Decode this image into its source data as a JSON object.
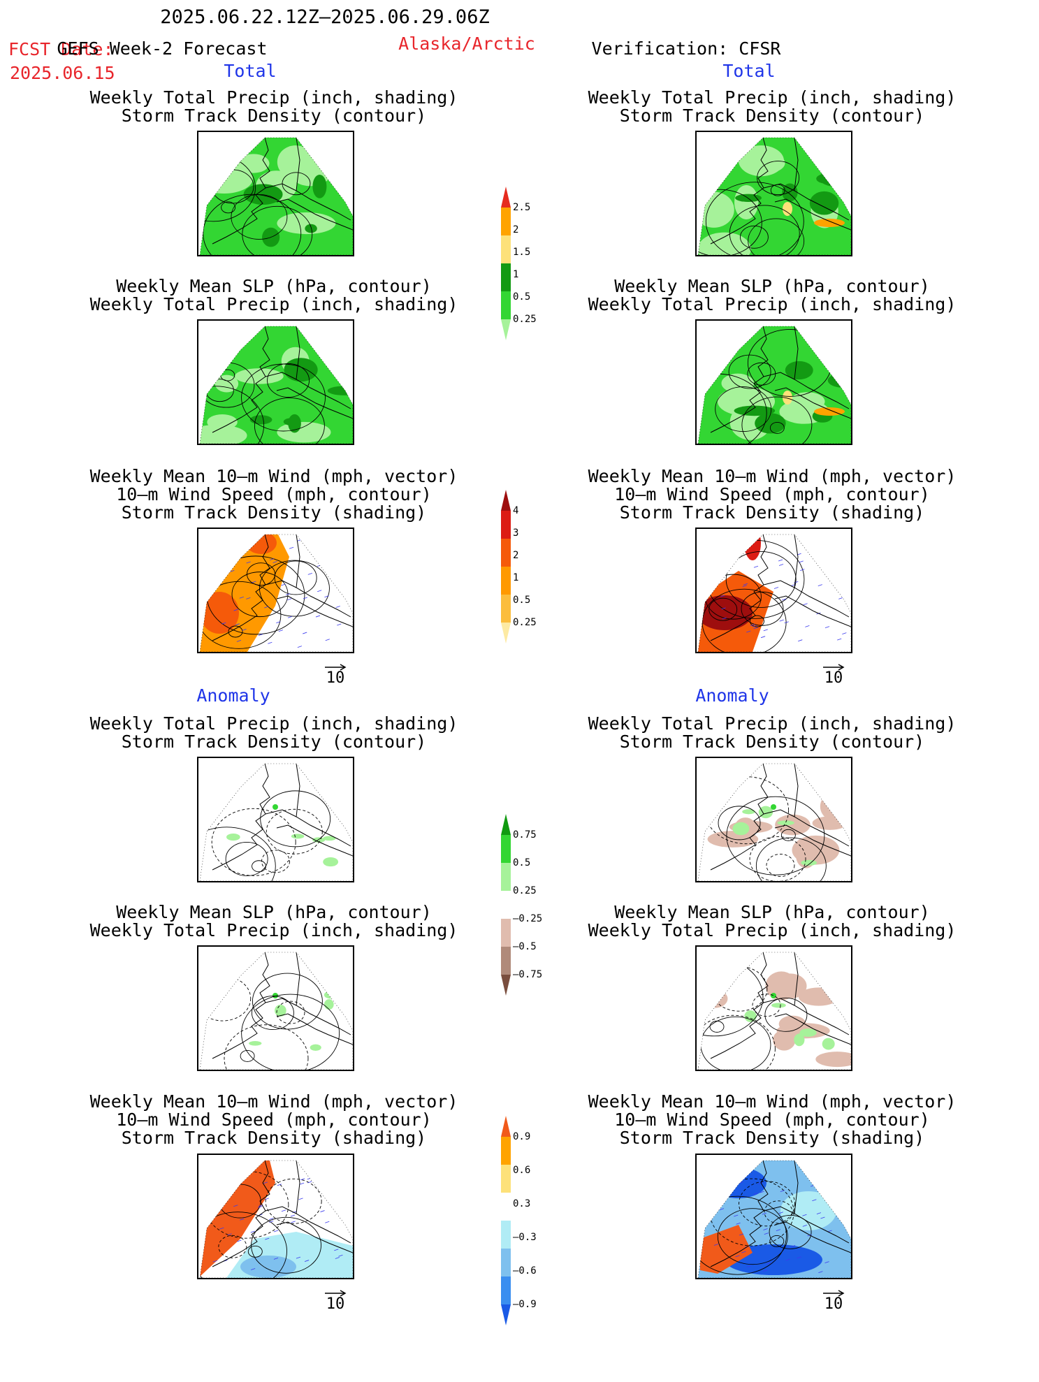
{
  "header": {
    "date_range": "2025.06.22.12Z–2025.06.29.06Z",
    "fcst_label": "FCST Date:",
    "fcst_date": "2025.06.15",
    "model": "GEFS Week-2 Forecast",
    "region": "Alaska/Arctic",
    "verification": "Verification: CFSR"
  },
  "sections": {
    "total": "Total",
    "anomaly": "Anomaly"
  },
  "panel_titles": {
    "precip_storm": [
      "Weekly Total Precip (inch, shading)",
      "Storm Track Density (contour)"
    ],
    "slp_precip": [
      "Weekly Mean SLP (hPa, contour)",
      "Weekly Total Precip (inch, shading)"
    ],
    "wind_storm": [
      "Weekly Mean 10–m Wind (mph, vector)",
      "10–m Wind Speed (mph, contour)",
      "Storm Track Density (shading)"
    ]
  },
  "vector_key": "10",
  "colorbars": {
    "precip_total": {
      "labels": [
        "2.5",
        "2",
        "1.5",
        "1",
        "0.5",
        "0.25"
      ],
      "colors": [
        "#e62b1e",
        "#ffa300",
        "#fde17a",
        "#139a13",
        "#33d633",
        "#a6f29a"
      ]
    },
    "storm_total": {
      "labels": [
        "4",
        "3",
        "2",
        "1",
        "0.5",
        "0.25"
      ],
      "colors": [
        "#9e0e0e",
        "#dc1c14",
        "#f55a0a",
        "#ff9900",
        "#fbbd3d",
        "#fdeaa3"
      ]
    },
    "precip_anom": {
      "labels": [
        "0.75",
        "0.5",
        "0.25",
        "–0.25",
        "–0.5",
        "–0.75"
      ],
      "colors": [
        "#109a10",
        "#33d633",
        "#a6f29a",
        "#ffffff",
        "#e0bcae",
        "#b08a7a",
        "#7a4e3e"
      ]
    },
    "storm_anom": {
      "labels": [
        "0.9",
        "0.6",
        "0.3",
        "–0.3",
        "–0.6",
        "–0.9"
      ],
      "colors": [
        "#f15a1a",
        "#ffa300",
        "#fde17a",
        "#ffffff",
        "#b0ecf5",
        "#7ec0ee",
        "#3a8ef0",
        "#1a5ae6"
      ]
    }
  }
}
